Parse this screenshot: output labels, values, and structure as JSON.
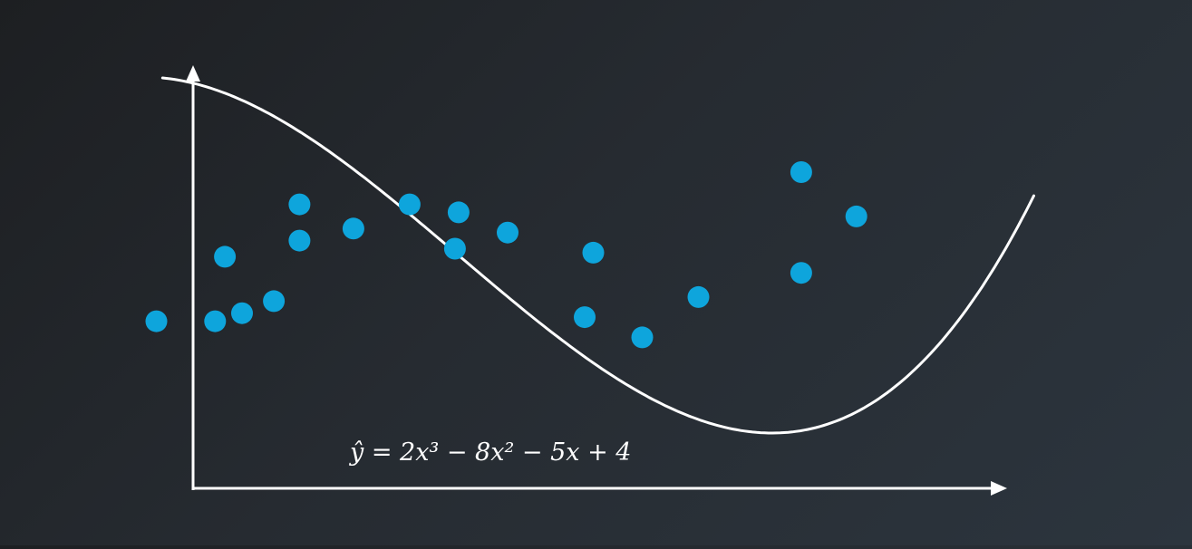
{
  "chart_data": {
    "type": "scatter",
    "title": "",
    "xlabel": "",
    "ylabel": "",
    "grid": false,
    "legend": "none",
    "ticks": "none",
    "equation": "ŷ = 2x³ − 8x² − 5x + 4",
    "fit_curve": {
      "kind": "cubic",
      "coefficients": [
        2,
        -8,
        -5,
        4
      ],
      "x_range": [
        -0.25,
        6.87
      ]
    },
    "xlim": [
      -0.5,
      6.7
    ],
    "ylim": [
      -3.2,
      4.1
    ],
    "series": [
      {
        "color": "#0ea5dc",
        "points": [
          {
            "x": -0.3,
            "y": -0.8
          },
          {
            "x": 0.18,
            "y": -0.8
          },
          {
            "x": 0.26,
            "y": 0.8
          },
          {
            "x": 0.4,
            "y": -0.6
          },
          {
            "x": 0.66,
            "y": -0.3
          },
          {
            "x": 0.87,
            "y": 1.2
          },
          {
            "x": 0.87,
            "y": 2.1
          },
          {
            "x": 1.31,
            "y": 1.5
          },
          {
            "x": 1.77,
            "y": 2.1
          },
          {
            "x": 2.14,
            "y": 1.0
          },
          {
            "x": 2.17,
            "y": 1.9
          },
          {
            "x": 2.57,
            "y": 1.4
          },
          {
            "x": 3.2,
            "y": -0.7
          },
          {
            "x": 3.27,
            "y": 0.9
          },
          {
            "x": 3.67,
            "y": -1.2
          },
          {
            "x": 4.13,
            "y": -0.2
          },
          {
            "x": 4.97,
            "y": 0.4
          },
          {
            "x": 4.97,
            "y": 2.9
          },
          {
            "x": 5.42,
            "y": 1.8
          }
        ]
      }
    ]
  }
}
